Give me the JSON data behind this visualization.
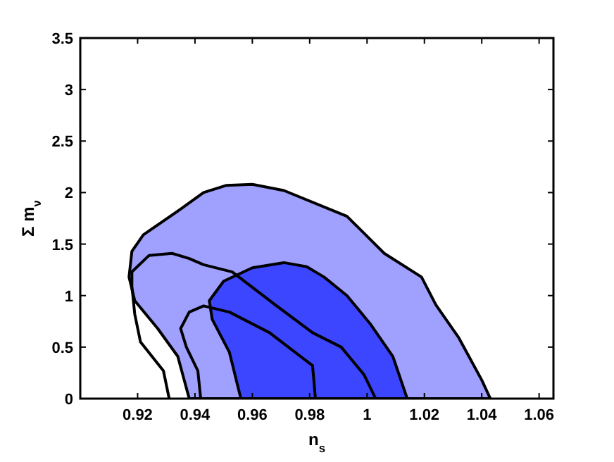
{
  "chart_data": {
    "type": "area",
    "xlabel": "n$_{s}$",
    "ylabel": "Σ m$_{ν}$",
    "xlim": [
      0.9,
      1.065
    ],
    "ylim": [
      0,
      3.5
    ],
    "xticks": [
      0.92,
      0.94,
      0.96,
      0.98,
      1,
      1.02,
      1.04,
      1.06
    ],
    "yticks": [
      0,
      0.5,
      1,
      1.5,
      2,
      2.5,
      3,
      3.5
    ],
    "grid": false,
    "series": [
      {
        "color": "#a0a0ff",
        "x": [
          0.938,
          0.934,
          0.927,
          0.919,
          0.917,
          0.918,
          0.922,
          0.935,
          0.943,
          0.951,
          0.96,
          0.971,
          0.993,
          1.006,
          1.019,
          1.024,
          1.032,
          1.04,
          1.043
        ],
        "values": [
          0,
          0.41,
          0.68,
          0.95,
          1.18,
          1.43,
          1.59,
          1.84,
          2.0,
          2.07,
          2.08,
          2.02,
          1.77,
          1.41,
          1.18,
          0.91,
          0.59,
          0.18,
          0
        ]
      },
      {
        "color": "#3c46ff",
        "x": [
          0.956,
          0.952,
          0.946,
          0.945,
          0.95,
          0.96,
          0.971,
          0.979,
          0.985,
          0.993,
          1.001,
          1.009,
          1.014
        ],
        "values": [
          0,
          0.45,
          0.77,
          0.95,
          1.14,
          1.27,
          1.32,
          1.28,
          1.18,
          1.0,
          0.73,
          0.41,
          0
        ]
      },
      {
        "type": "line",
        "color": "#000000",
        "x": [
          0.931,
          0.929,
          0.925,
          0.921,
          0.919,
          0.918,
          0.918,
          0.924,
          0.932,
          0.938,
          0.943,
          0.953,
          0.968,
          0.981,
          0.991,
          0.999,
          1.003
        ],
        "values": [
          0,
          0.27,
          0.41,
          0.55,
          0.82,
          1.09,
          1.23,
          1.39,
          1.41,
          1.36,
          1.3,
          1.23,
          0.91,
          0.64,
          0.5,
          0.23,
          0
        ]
      },
      {
        "type": "line",
        "color": "#000000",
        "x": [
          0.942,
          0.941,
          0.937,
          0.935,
          0.938,
          0.943,
          0.952,
          0.966,
          0.981,
          0.982
        ],
        "values": [
          0,
          0.27,
          0.5,
          0.68,
          0.84,
          0.9,
          0.84,
          0.64,
          0.32,
          0
        ]
      }
    ]
  }
}
